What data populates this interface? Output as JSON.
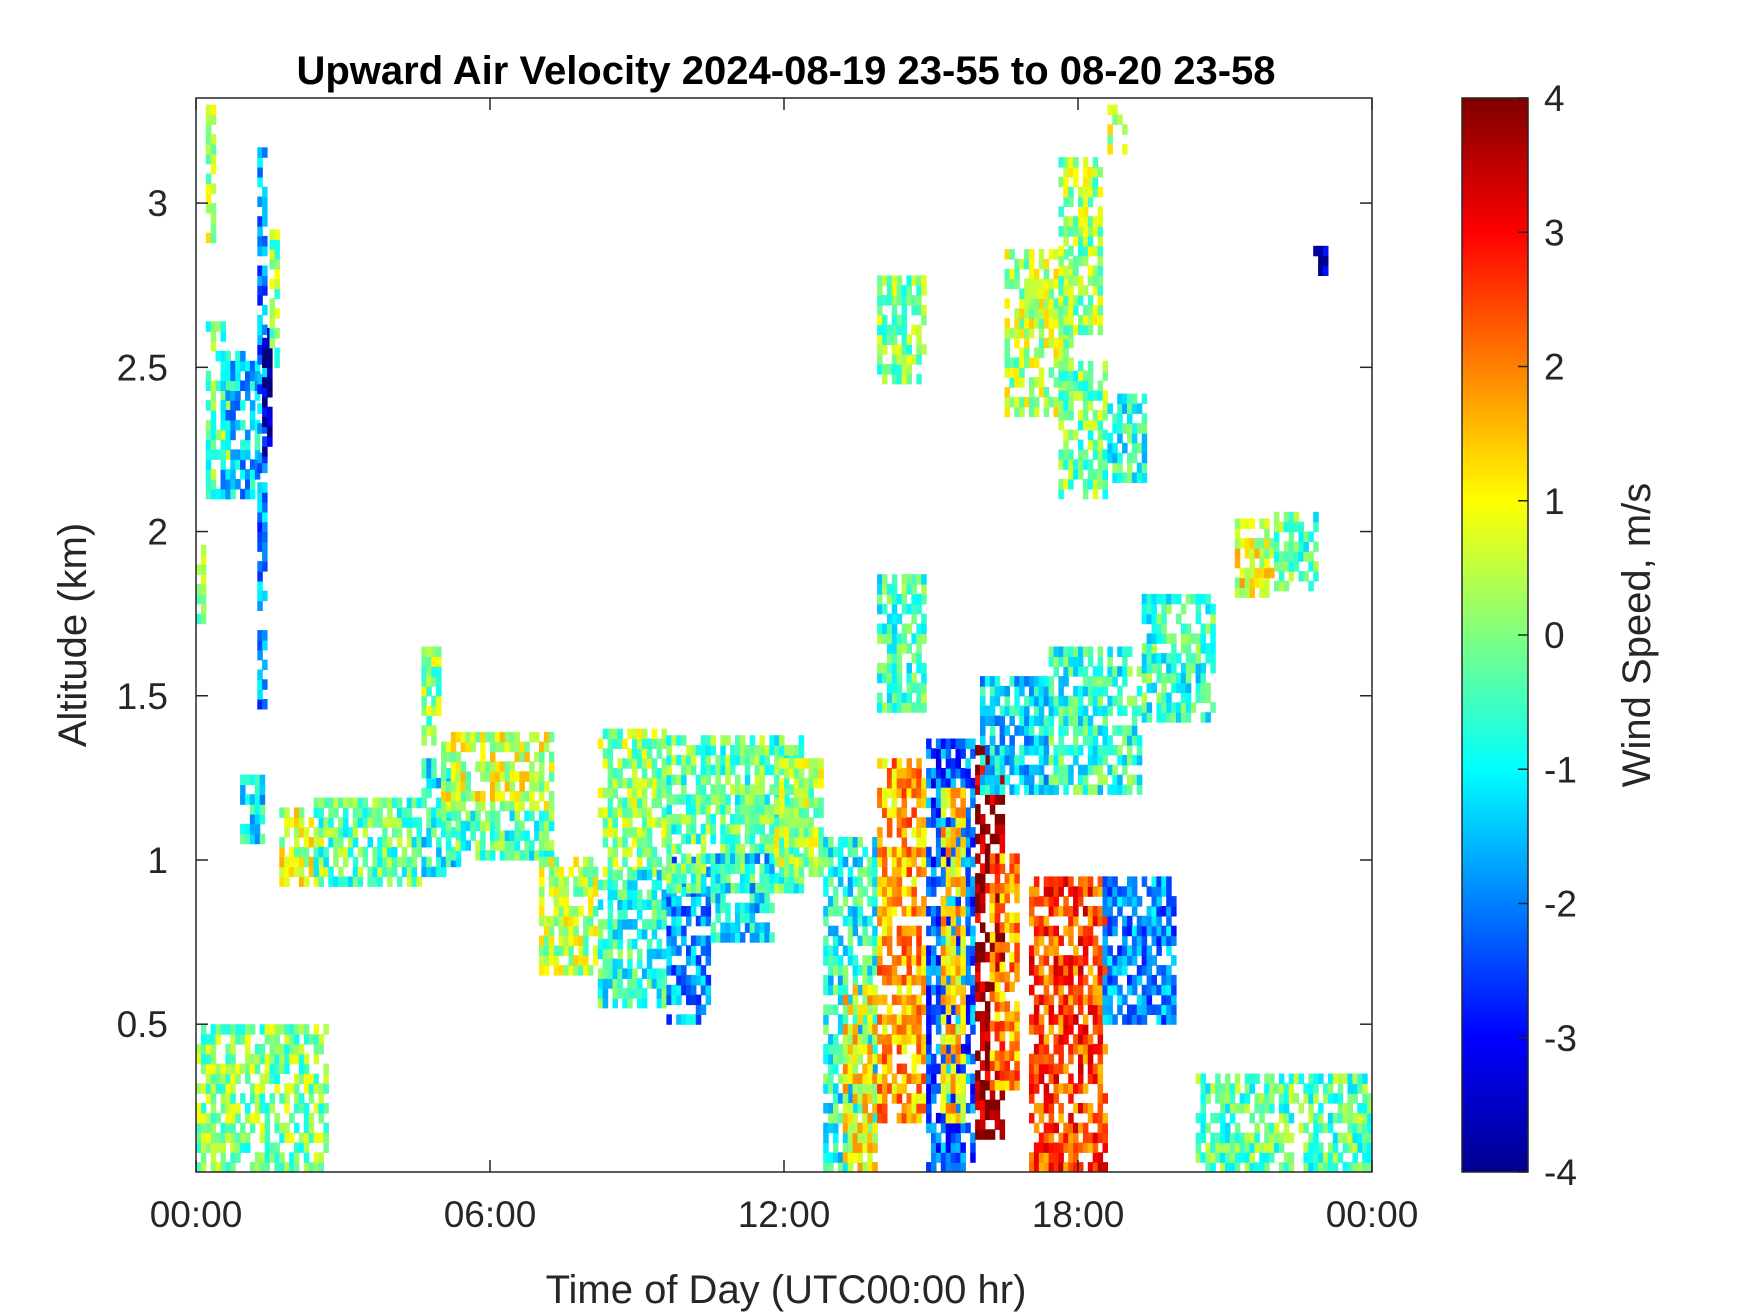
{
  "chart_data": {
    "type": "heatmap",
    "title": "Upward Air Velocity 2024-08-19 23-55 to 08-20 23-58",
    "xlabel": "Time of Day (UTC00:00 hr)",
    "ylabel": "Altitude (km)",
    "xlim": [
      0,
      24
    ],
    "ylim": [
      0.05,
      3.32
    ],
    "xticks": [
      {
        "value": 0,
        "label": "00:00"
      },
      {
        "value": 6,
        "label": "06:00"
      },
      {
        "value": 12,
        "label": "12:00"
      },
      {
        "value": 18,
        "label": "18:00"
      },
      {
        "value": 24,
        "label": "00:00"
      }
    ],
    "yticks": [
      {
        "value": 0.5,
        "label": "0.5"
      },
      {
        "value": 1,
        "label": "1"
      },
      {
        "value": 1.5,
        "label": "1.5"
      },
      {
        "value": 2,
        "label": "2"
      },
      {
        "value": 2.5,
        "label": "2.5"
      },
      {
        "value": 3,
        "label": "3"
      }
    ],
    "colorbar": {
      "label": "Wind Speed, m/s",
      "colormap": "jet",
      "clim": [
        -4,
        4
      ],
      "ticks": [
        {
          "value": 4,
          "label": "4"
        },
        {
          "value": 3,
          "label": "3"
        },
        {
          "value": 2,
          "label": "2"
        },
        {
          "value": 1,
          "label": "1"
        },
        {
          "value": 0,
          "label": "0"
        },
        {
          "value": -1,
          "label": "-1"
        },
        {
          "value": -2,
          "label": "-2"
        },
        {
          "value": -3,
          "label": "-3"
        },
        {
          "value": -4,
          "label": "-4"
        }
      ]
    },
    "grid": false,
    "regions": [
      {
        "t": [
          0.0,
          0.2
        ],
        "z": [
          1.72,
          1.95
        ],
        "w": 0.3
      },
      {
        "t": [
          0.2,
          0.4
        ],
        "z": [
          2.85,
          3.28
        ],
        "w": 0.5
      },
      {
        "t": [
          0.2,
          0.7
        ],
        "z": [
          2.1,
          2.62
        ],
        "w": -0.2
      },
      {
        "t": [
          0.5,
          1.3
        ],
        "z": [
          2.1,
          2.55
        ],
        "w": -1.4
      },
      {
        "t": [
          1.25,
          1.45
        ],
        "z": [
          1.4,
          3.15
        ],
        "w": -1.9
      },
      {
        "t": [
          1.35,
          1.5
        ],
        "z": [
          2.2,
          2.6
        ],
        "w": -3.4
      },
      {
        "t": [
          1.5,
          1.7
        ],
        "z": [
          2.5,
          2.92
        ],
        "w": 0.1
      },
      {
        "t": [
          0.9,
          1.4
        ],
        "z": [
          1.05,
          1.25
        ],
        "w": -1.1
      },
      {
        "t": [
          1.7,
          2.6
        ],
        "z": [
          0.92,
          1.15
        ],
        "w": 0.7
      },
      {
        "t": [
          2.4,
          4.6
        ],
        "z": [
          0.92,
          1.18
        ],
        "w": -0.3
      },
      {
        "t": [
          4.6,
          5.0
        ],
        "z": [
          1.35,
          1.65
        ],
        "w": 0.1
      },
      {
        "t": [
          4.6,
          5.4
        ],
        "z": [
          0.95,
          1.3
        ],
        "w": -0.9
      },
      {
        "t": [
          5.0,
          7.3
        ],
        "z": [
          1.15,
          1.38
        ],
        "w": 0.6
      },
      {
        "t": [
          5.0,
          7.3
        ],
        "z": [
          1.0,
          1.15
        ],
        "w": -0.4
      },
      {
        "t": [
          7.0,
          8.2
        ],
        "z": [
          0.65,
          1.0
        ],
        "w": 0.4
      },
      {
        "t": [
          8.2,
          9.6
        ],
        "z": [
          0.95,
          1.4
        ],
        "w": 0.2
      },
      {
        "t": [
          8.2,
          9.6
        ],
        "z": [
          0.55,
          0.95
        ],
        "w": -0.7
      },
      {
        "t": [
          9.6,
          10.5
        ],
        "z": [
          0.5,
          1.0
        ],
        "w": -1.8
      },
      {
        "t": [
          9.6,
          12.4
        ],
        "z": [
          0.9,
          1.36
        ],
        "w": -0.3
      },
      {
        "t": [
          10.5,
          11.8
        ],
        "z": [
          0.75,
          1.0
        ],
        "w": -1.2
      },
      {
        "t": [
          11.8,
          12.8
        ],
        "z": [
          0.95,
          1.3
        ],
        "w": 0.3
      },
      {
        "t": [
          12.8,
          13.9
        ],
        "z": [
          0.05,
          1.05
        ],
        "w": -0.8
      },
      {
        "t": [
          13.2,
          13.9
        ],
        "z": [
          0.05,
          0.6
        ],
        "w": 1.0
      },
      {
        "t": [
          13.9,
          14.9
        ],
        "z": [
          0.2,
          1.3
        ],
        "w": 1.7
      },
      {
        "t": [
          13.9,
          14.9
        ],
        "z": [
          1.45,
          1.85
        ],
        "w": -0.5
      },
      {
        "t": [
          13.9,
          14.9
        ],
        "z": [
          2.45,
          2.78
        ],
        "w": 0.0
      },
      {
        "t": [
          14.9,
          15.9
        ],
        "z": [
          0.05,
          1.35
        ],
        "w": -2.2
      },
      {
        "t": [
          15.2,
          15.7
        ],
        "z": [
          0.2,
          1.2
        ],
        "w": 1.3
      },
      {
        "t": [
          15.9,
          16.5
        ],
        "z": [
          0.15,
          1.38
        ],
        "w": 3.8
      },
      {
        "t": [
          16.2,
          16.8
        ],
        "z": [
          0.3,
          1.0
        ],
        "w": 1.9
      },
      {
        "t": [
          16.0,
          17.4
        ],
        "z": [
          1.2,
          1.55
        ],
        "w": -1.3
      },
      {
        "t": [
          16.5,
          17.9
        ],
        "z": [
          2.35,
          2.85
        ],
        "w": 0.4
      },
      {
        "t": [
          17.0,
          18.6
        ],
        "z": [
          0.05,
          0.95
        ],
        "w": 2.5
      },
      {
        "t": [
          17.4,
          19.3
        ],
        "z": [
          1.2,
          1.65
        ],
        "w": -0.6
      },
      {
        "t": [
          17.6,
          18.5
        ],
        "z": [
          2.6,
          3.12
        ],
        "w": 0.2
      },
      {
        "t": [
          17.6,
          18.6
        ],
        "z": [
          2.1,
          2.5
        ],
        "w": -0.1
      },
      {
        "t": [
          18.6,
          19.0
        ],
        "z": [
          3.15,
          3.3
        ],
        "w": 0.5
      },
      {
        "t": [
          18.6,
          19.4
        ],
        "z": [
          2.15,
          2.42
        ],
        "w": -0.7
      },
      {
        "t": [
          18.5,
          20.0
        ],
        "z": [
          0.5,
          0.95
        ],
        "w": -1.9
      },
      {
        "t": [
          19.3,
          20.8
        ],
        "z": [
          1.42,
          1.8
        ],
        "w": -0.6
      },
      {
        "t": [
          21.2,
          22.0
        ],
        "z": [
          1.8,
          2.02
        ],
        "w": 0.8
      },
      {
        "t": [
          22.0,
          22.9
        ],
        "z": [
          1.82,
          2.05
        ],
        "w": -0.4
      },
      {
        "t": [
          22.8,
          23.1
        ],
        "z": [
          2.78,
          2.85
        ],
        "w": -3.8
      },
      {
        "t": [
          0.0,
          2.7
        ],
        "z": [
          0.05,
          0.5
        ],
        "w": 0.0
      },
      {
        "t": [
          20.4,
          24.0
        ],
        "z": [
          0.05,
          0.35
        ],
        "w": -0.3
      }
    ]
  }
}
